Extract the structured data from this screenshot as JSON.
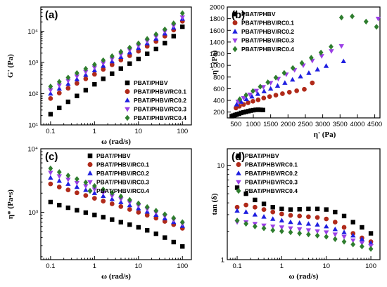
{
  "figure": {
    "colors": {
      "PBAT/PHBV": "#000000",
      "PBAT/PHBV/RC0.1": "#b02a1a",
      "PBAT/PHBV/RC0.2": "#1f1fe0",
      "PBAT/PHBV/RC0.3": "#9b3fe6",
      "PBAT/PHBV/RC0.4": "#2e7d2e"
    },
    "markers": {
      "PBAT/PHBV": "square",
      "PBAT/PHBV/RC0.1": "circle",
      "PBAT/PHBV/RC0.2": "triangle-up",
      "PBAT/PHBV/RC0.3": "triangle-down",
      "PBAT/PHBV/RC0.4": "diamond"
    }
  },
  "chart_data": [
    {
      "id": "a",
      "panel_label": "(a)",
      "type": "scatter",
      "xlabel": "ω (rad/s)",
      "ylabel": "G' (Pa)",
      "xscale": "log",
      "yscale": "log",
      "xlim": [
        0.06,
        160
      ],
      "ylim": [
        10,
        60000
      ],
      "xticks": [
        0.1,
        1,
        10,
        100
      ],
      "xtick_labels": [
        "0.1",
        "1",
        "10",
        "100"
      ],
      "yticks": [
        10,
        100,
        1000,
        10000
      ],
      "ytick_labels": [
        "10¹",
        "10²",
        "10³",
        "10⁴"
      ],
      "legend": "bottom-right",
      "x": [
        0.1,
        0.158,
        0.251,
        0.398,
        0.631,
        1,
        1.58,
        2.51,
        3.98,
        6.31,
        10,
        15.8,
        25.1,
        39.8,
        63.1,
        100
      ],
      "series": [
        {
          "name": "PBAT/PHBV",
          "values": [
            22,
            35,
            55,
            85,
            130,
            200,
            300,
            440,
            640,
            920,
            1300,
            1900,
            2700,
            4200,
            7000,
            14000
          ]
        },
        {
          "name": "PBAT/PHBV/RC0.1",
          "values": [
            70,
            105,
            150,
            215,
            300,
            420,
            600,
            850,
            1200,
            1650,
            2300,
            3300,
            4700,
            7000,
            11000,
            21000
          ]
        },
        {
          "name": "PBAT/PHBV/RC0.2",
          "values": [
            100,
            145,
            205,
            290,
            400,
            560,
            780,
            1080,
            1500,
            2100,
            2900,
            4100,
            5800,
            8500,
            13000,
            25000
          ]
        },
        {
          "name": "PBAT/PHBV/RC0.3",
          "values": [
            130,
            185,
            260,
            360,
            500,
            690,
            950,
            1300,
            1800,
            2500,
            3400,
            4800,
            6700,
            9800,
            15000,
            28000
          ]
        },
        {
          "name": "PBAT/PHBV/RC0.4",
          "values": [
            170,
            240,
            330,
            460,
            630,
            860,
            1180,
            1600,
            2200,
            3000,
            4100,
            5700,
            8000,
            11500,
            18000,
            38000
          ]
        }
      ]
    },
    {
      "id": "b",
      "panel_label": "(b)",
      "type": "scatter",
      "xlabel": "η' (Pa)",
      "ylabel": "η'' (Pa)",
      "xscale": "linear",
      "yscale": "linear",
      "xlim": [
        250,
        4650
      ],
      "ylim": [
        100,
        2000
      ],
      "xticks": [
        500,
        1000,
        1500,
        2000,
        2500,
        3000,
        3500,
        4000,
        4500
      ],
      "xtick_labels": [
        "500",
        "1000",
        "1500",
        "2000",
        "2500",
        "3000",
        "3500",
        "4000",
        "4500"
      ],
      "yticks": [
        200,
        400,
        600,
        800,
        1000,
        1200,
        1400,
        1600,
        1800,
        2000
      ],
      "ytick_labels": [
        "200",
        "400",
        "600",
        "800",
        "1000",
        "1200",
        "1400",
        "1600",
        "1800",
        "2000"
      ],
      "legend": "top-left",
      "series": [
        {
          "name": "PBAT/PHBV",
          "x": [
            380,
            430,
            480,
            530,
            590,
            650,
            720,
            790,
            860,
            930,
            1000,
            1070,
            1140,
            1210,
            1280
          ],
          "y": [
            130,
            140,
            150,
            160,
            170,
            185,
            195,
            205,
            215,
            225,
            232,
            238,
            240,
            238,
            235
          ]
        },
        {
          "name": "PBAT/PHBV/RC0.1",
          "x": [
            500,
            600,
            720,
            850,
            990,
            1140,
            1300,
            1470,
            1650,
            1840,
            2040,
            2250,
            2470,
            2700
          ],
          "y": [
            270,
            300,
            330,
            360,
            385,
            410,
            440,
            465,
            490,
            515,
            540,
            565,
            590,
            700
          ]
        },
        {
          "name": "PBAT/PHBV/RC0.2",
          "x": [
            520,
            650,
            800,
            960,
            1130,
            1310,
            1500,
            1700,
            1910,
            2130,
            2360,
            2600,
            2850,
            3100,
            3600
          ],
          "y": [
            330,
            375,
            420,
            465,
            510,
            555,
            600,
            650,
            700,
            755,
            810,
            870,
            930,
            990,
            1070
          ]
        },
        {
          "name": "PBAT/PHBV/RC0.3",
          "x": [
            560,
            720,
            900,
            1090,
            1290,
            1500,
            1720,
            1950,
            2190,
            2440,
            2700,
            2970,
            3250,
            3540,
            4600
          ],
          "y": [
            380,
            440,
            500,
            565,
            630,
            700,
            770,
            845,
            920,
            1000,
            1080,
            1160,
            1245,
            1330,
            1800
          ]
        },
        {
          "name": "PBAT/PHBV/RC0.4",
          "x": [
            610,
            790,
            990,
            1200,
            1420,
            1650,
            1890,
            2140,
            2400,
            2670,
            2950,
            3240,
            3540,
            3850,
            4250,
            4550
          ],
          "y": [
            420,
            490,
            560,
            635,
            710,
            790,
            870,
            955,
            1040,
            1130,
            1220,
            1320,
            1820,
            1840,
            1750,
            1660
          ]
        }
      ]
    },
    {
      "id": "c",
      "panel_label": "(c)",
      "type": "scatter",
      "xlabel": "ω (rad/s)",
      "ylabel": "η* (Pa•s)",
      "xscale": "log",
      "yscale": "log",
      "xlim": [
        0.06,
        160
      ],
      "ylim": [
        180,
        10000
      ],
      "xticks": [
        0.1,
        1,
        10,
        100
      ],
      "xtick_labels": [
        "0.1",
        "1",
        "10",
        "100"
      ],
      "yticks": [
        1000,
        10000
      ],
      "ytick_labels": [
        "10³",
        "10⁴"
      ],
      "legend": "top-right",
      "x": [
        0.1,
        0.158,
        0.251,
        0.398,
        0.631,
        1,
        1.58,
        2.51,
        3.98,
        6.31,
        10,
        15.8,
        25.1,
        39.8,
        63.1,
        100
      ],
      "series": [
        {
          "name": "PBAT/PHBV",
          "values": [
            1450,
            1300,
            1180,
            1080,
            990,
            910,
            840,
            770,
            700,
            640,
            580,
            520,
            460,
            400,
            340,
            290
          ]
        },
        {
          "name": "PBAT/PHBV/RC0.1",
          "values": [
            2800,
            2500,
            2250,
            2030,
            1840,
            1660,
            1500,
            1360,
            1230,
            1110,
            1000,
            900,
            810,
            720,
            640,
            560
          ]
        },
        {
          "name": "PBAT/PHBV/RC0.2",
          "values": [
            3500,
            3120,
            2790,
            2500,
            2240,
            2010,
            1800,
            1610,
            1440,
            1290,
            1150,
            1020,
            910,
            800,
            700,
            610
          ]
        },
        {
          "name": "PBAT/PHBV/RC0.3",
          "values": [
            4200,
            3700,
            3280,
            2910,
            2590,
            2300,
            2040,
            1810,
            1610,
            1430,
            1270,
            1120,
            990,
            870,
            760,
            660
          ]
        },
        {
          "name": "PBAT/PHBV/RC0.4",
          "values": [
            4900,
            4300,
            3790,
            3340,
            2950,
            2600,
            2290,
            2020,
            1780,
            1570,
            1380,
            1210,
            1060,
            930,
            810,
            700
          ]
        }
      ]
    },
    {
      "id": "d",
      "panel_label": "(d)",
      "type": "scatter",
      "xlabel": "ω (rad/s)",
      "ylabel": "tan (δ)",
      "xscale": "log",
      "yscale": "log",
      "xlim": [
        0.06,
        160
      ],
      "ylim": [
        1,
        15
      ],
      "xticks": [
        0.1,
        1,
        10,
        100
      ],
      "xtick_labels": [
        "0.1",
        "1",
        "10",
        "100"
      ],
      "yticks": [
        1,
        10
      ],
      "ytick_labels": [
        "1",
        "10"
      ],
      "legend": "top-right",
      "x": [
        0.1,
        0.158,
        0.251,
        0.398,
        0.631,
        1,
        1.58,
        2.51,
        3.98,
        6.31,
        10,
        15.8,
        25.1,
        39.8,
        63.1,
        100
      ],
      "series": [
        {
          "name": "PBAT/PHBV",
          "values": [
            5.8,
            5.0,
            4.3,
            3.9,
            3.6,
            3.45,
            3.4,
            3.42,
            3.45,
            3.45,
            3.4,
            3.2,
            2.9,
            2.5,
            2.2,
            1.9
          ]
        },
        {
          "name": "PBAT/PHBV/RC0.1",
          "values": [
            3.6,
            3.8,
            3.6,
            3.4,
            3.2,
            3.05,
            2.95,
            2.9,
            2.85,
            2.8,
            2.7,
            2.5,
            2.2,
            1.9,
            1.7,
            1.55
          ]
        },
        {
          "name": "PBAT/PHBV/RC0.2",
          "values": [
            3.3,
            3.2,
            3.0,
            2.85,
            2.7,
            2.6,
            2.5,
            2.45,
            2.4,
            2.35,
            2.25,
            2.1,
            1.95,
            1.8,
            1.65,
            1.5
          ]
        },
        {
          "name": "PBAT/PHBV/RC0.3",
          "values": [
            2.5,
            2.5,
            2.4,
            2.3,
            2.25,
            2.2,
            2.15,
            2.1,
            2.05,
            2.0,
            1.95,
            1.85,
            1.75,
            1.6,
            1.5,
            1.4
          ]
        },
        {
          "name": "PBAT/PHBV/RC0.4",
          "values": [
            2.6,
            2.4,
            2.25,
            2.15,
            2.05,
            2.0,
            1.95,
            1.9,
            1.85,
            1.8,
            1.75,
            1.65,
            1.55,
            1.45,
            1.38,
            1.3
          ]
        }
      ]
    }
  ]
}
